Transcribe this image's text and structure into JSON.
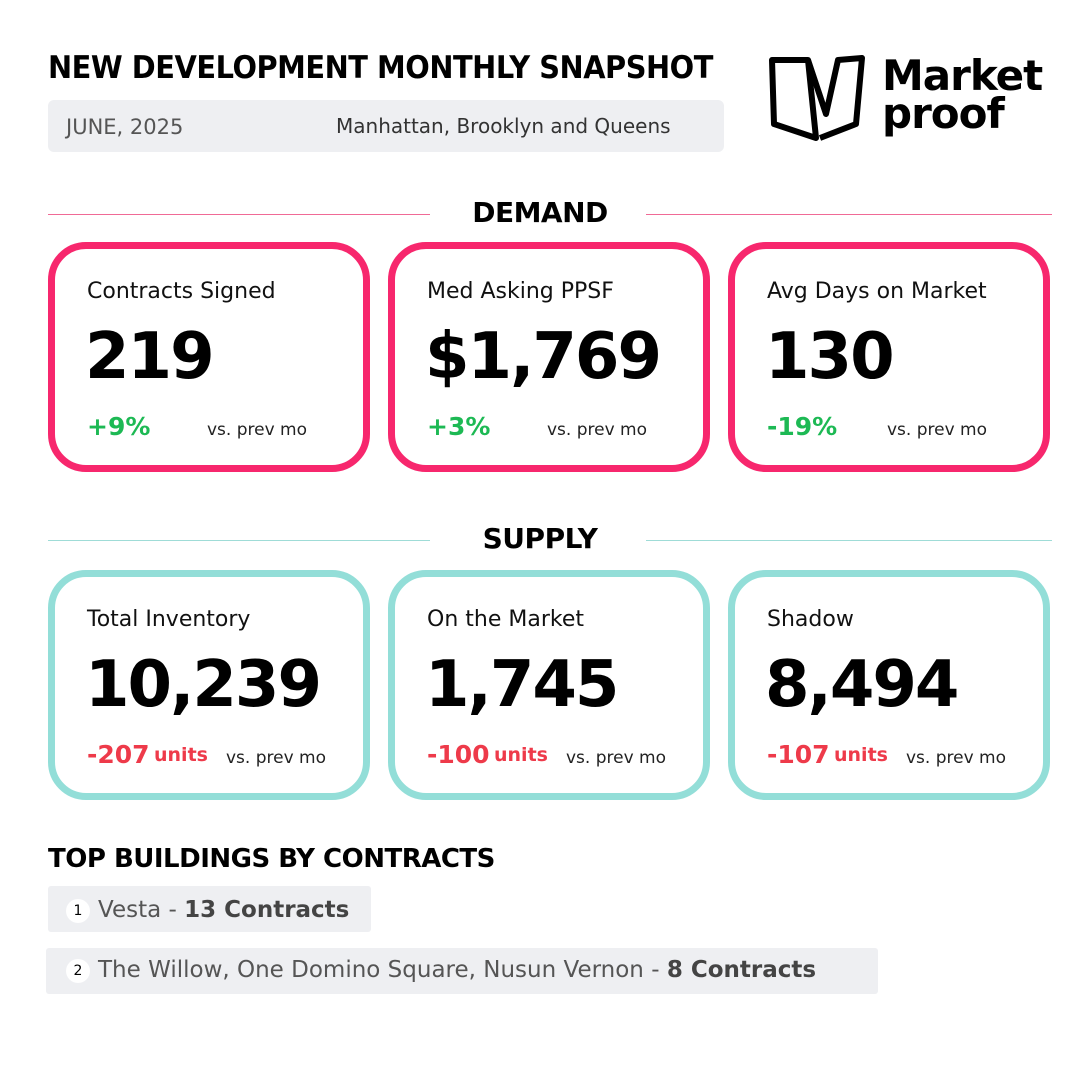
{
  "header": {
    "title": "NEW DEVELOPMENT MONTHLY SNAPSHOT",
    "date": "JUNE, 2025",
    "region": "Manhattan, Brooklyn and Queens",
    "logo": [
      "Market",
      "proof"
    ]
  },
  "demand": {
    "heading": "DEMAND",
    "cards": [
      {
        "label": "Contracts Signed",
        "value": "219",
        "change": "+9%",
        "compare": "vs. prev mo"
      },
      {
        "label": "Med Asking PPSF",
        "value": "$1,769",
        "change": "+3%",
        "compare": "vs. prev mo"
      },
      {
        "label": "Avg Days on Market",
        "value": "130",
        "change": "-19%",
        "compare": "vs. prev mo"
      }
    ]
  },
  "supply": {
    "heading": "SUPPLY",
    "cards": [
      {
        "label": "Total Inventory",
        "value": "10,239",
        "change": "-207",
        "unit": "units",
        "compare": "vs. prev mo"
      },
      {
        "label": "On the Market",
        "value": "1,745",
        "change": "-100",
        "unit": "units",
        "compare": "vs. prev mo"
      },
      {
        "label": "Shadow",
        "value": "8,494",
        "change": "-107",
        "unit": "units",
        "compare": "vs. prev mo"
      }
    ]
  },
  "top_buildings": {
    "heading": "TOP BUILDINGS BY CONTRACTS",
    "items": [
      {
        "rank": "1",
        "name": "Vesta -",
        "contracts": "13 Contracts"
      },
      {
        "rank": "2",
        "name": "The Willow, One Domino Square, Nusun Vernon -",
        "contracts": "8 Contracts"
      }
    ]
  }
}
